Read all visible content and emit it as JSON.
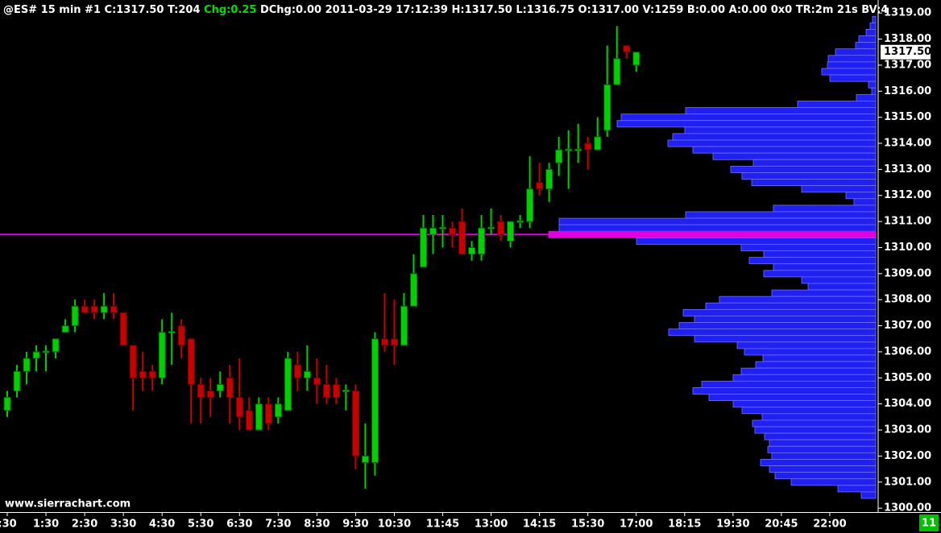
{
  "chart_data": {
    "type": "candlestick",
    "header": "@ES#  15 min  #1 C:1317.50 T:204",
    "change_text": "Chg:0.25",
    "header_rest": "DChg:0.00 2011-03-29 17:12:39 H:1317.50 L:1316.75 O:1317.00 V:1259 B:0.00 A:0.00 0x0 TR:2m 21s BV:4",
    "watermark": "www.sierrachart.com",
    "badge": "11",
    "last_price_label": "1317.50",
    "up_color": "#00d000",
    "down_color": "#c80000",
    "open": [
      1303.75,
      1304.5,
      1305.25,
      1305.75,
      1306,
      1306,
      1306.75,
      1307,
      1307.75,
      1307.75,
      1307.5,
      1307.75,
      1307.5,
      1306.25,
      1305.25,
      1305.25,
      1305,
      1306.75,
      1307,
      1306.5,
      1304.75,
      1304.5,
      1304.5,
      1305,
      1304.25,
      1303.75,
      1303,
      1304,
      1303.5,
      1303.75,
      1305.5,
      1305,
      1305,
      1304.75,
      1304.75,
      1304.5,
      1304.5,
      1301.75,
      1301.75,
      1306.5,
      1306.5,
      1306.25,
      1307.75,
      1309.25,
      1310.5,
      1310.75,
      1310.75,
      1311,
      1309.75,
      1309.75,
      1310.75,
      1311,
      1310.25,
      1311,
      1311,
      1312.5,
      1312.25,
      1313.25,
      1313.75,
      1313.75,
      1314,
      1313.75,
      1314.5,
      1316.25,
      1317.75,
      1317
    ],
    "high": [
      1304.5,
      1305.5,
      1306,
      1306.25,
      1306.25,
      1306.5,
      1307.25,
      1308,
      1308,
      1308,
      1308.25,
      1308.25,
      1307.5,
      1306.25,
      1306,
      1305.5,
      1307.25,
      1307.5,
      1307.25,
      1306.5,
      1305,
      1305,
      1305.25,
      1305.5,
      1305.75,
      1304.25,
      1304.25,
      1304.25,
      1304.25,
      1306,
      1306,
      1306.25,
      1305.75,
      1305.5,
      1305,
      1304.75,
      1304.75,
      1303.25,
      1306.75,
      1308.25,
      1308,
      1308.25,
      1309.75,
      1311.25,
      1311.25,
      1311.25,
      1311,
      1311.5,
      1310.25,
      1311.25,
      1311.5,
      1311.25,
      1311,
      1311.25,
      1313.5,
      1313.25,
      1313.25,
      1314.25,
      1314.5,
      1314.75,
      1314.25,
      1315,
      1317.75,
      1318.5,
      1317.75,
      1317.5
    ],
    "low": [
      1303.5,
      1304.25,
      1304.75,
      1305.25,
      1305.25,
      1305.75,
      1306.75,
      1306.75,
      1307.5,
      1307.25,
      1307.25,
      1307.25,
      1306.25,
      1303.75,
      1304.5,
      1304.5,
      1304.75,
      1305.5,
      1305.75,
      1303.25,
      1303.25,
      1303.5,
      1304.25,
      1303.25,
      1303,
      1303,
      1303,
      1303,
      1303.25,
      1303.75,
      1304.5,
      1304.5,
      1304,
      1304,
      1304,
      1303.75,
      1301.5,
      1300.75,
      1301.25,
      1306,
      1305.5,
      1306.25,
      1307.75,
      1309.25,
      1309.75,
      1310,
      1310,
      1309.75,
      1309.5,
      1309.5,
      1310.5,
      1310.25,
      1310,
      1310.75,
      1310.75,
      1312,
      1311.75,
      1312.75,
      1312.25,
      1313.25,
      1313,
      1313.75,
      1314.25,
      1316.25,
      1317.25,
      1316.75
    ],
    "close": [
      1304.25,
      1305.25,
      1305.75,
      1306,
      1306,
      1306.5,
      1307,
      1307.75,
      1307.5,
      1307.5,
      1307.75,
      1307.5,
      1306.25,
      1305,
      1305,
      1305,
      1306.75,
      1306.75,
      1306.25,
      1304.75,
      1304.25,
      1304.25,
      1304.75,
      1304.25,
      1303.5,
      1303,
      1304,
      1303.25,
      1304,
      1305.75,
      1305,
      1305.25,
      1304.75,
      1304.25,
      1304.25,
      1304.5,
      1302,
      1302,
      1306.5,
      1306.25,
      1306.25,
      1307.75,
      1309,
      1310.75,
      1310.75,
      1310.75,
      1310.5,
      1309.75,
      1310,
      1310.75,
      1310.75,
      1310.5,
      1311,
      1311,
      1312.25,
      1312.25,
      1313,
      1313.75,
      1313.75,
      1313.75,
      1313.75,
      1314.25,
      1316.25,
      1317.25,
      1317.5,
      1317.5
    ],
    "xlim": [
      -0.75,
      90
    ],
    "xticks": [
      {
        "value": 0,
        "label": ":30"
      },
      {
        "value": 4,
        "label": "1:30"
      },
      {
        "value": 8,
        "label": "2:30"
      },
      {
        "value": 12,
        "label": "3:30"
      },
      {
        "value": 16,
        "label": "4:30"
      },
      {
        "value": 20,
        "label": "5:30"
      },
      {
        "value": 24,
        "label": "6:30"
      },
      {
        "value": 28,
        "label": "7:30"
      },
      {
        "value": 32,
        "label": "8:30"
      },
      {
        "value": 36,
        "label": "9:30"
      },
      {
        "value": 40,
        "label": "10:30"
      },
      {
        "value": 45,
        "label": "11:45"
      },
      {
        "value": 50,
        "label": "13:00"
      },
      {
        "value": 55,
        "label": "14:15"
      },
      {
        "value": 60,
        "label": "15:30"
      },
      {
        "value": 65,
        "label": "17:00"
      },
      {
        "value": 70,
        "label": "18:15"
      },
      {
        "value": 75,
        "label": "19:30"
      },
      {
        "value": 80,
        "label": "20:45"
      },
      {
        "value": 85,
        "label": "22:00"
      }
    ],
    "ylim": [
      1299.85,
      1319.5
    ],
    "yticks": [
      {
        "value": 1300,
        "label": "1300.00"
      },
      {
        "value": 1301,
        "label": "1301.00"
      },
      {
        "value": 1302,
        "label": "1302.00"
      },
      {
        "value": 1303,
        "label": "1303.00"
      },
      {
        "value": 1304,
        "label": "1304.00"
      },
      {
        "value": 1305,
        "label": "1305.00"
      },
      {
        "value": 1306,
        "label": "1306.00"
      },
      {
        "value": 1307,
        "label": "1307.00"
      },
      {
        "value": 1308,
        "label": "1308.00"
      },
      {
        "value": 1309,
        "label": "1309.00"
      },
      {
        "value": 1310,
        "label": "1310.00"
      },
      {
        "value": 1311,
        "label": "1311.00"
      },
      {
        "value": 1312,
        "label": "1312.00"
      },
      {
        "value": 1313,
        "label": "1313.00"
      },
      {
        "value": 1314,
        "label": "1314.00"
      },
      {
        "value": 1315,
        "label": "1315.00"
      },
      {
        "value": 1316,
        "label": "1316.00"
      },
      {
        "value": 1317,
        "label": "1317.00"
      },
      {
        "value": 1318,
        "label": "1318.00"
      },
      {
        "value": 1319,
        "label": "1319.00"
      }
    ],
    "volume_profile": {
      "color": "#2020f0",
      "poc_color": "#e000e0",
      "poc": 1310.5,
      "prices": [
        1318.75,
        1318.5,
        1318.25,
        1318,
        1317.75,
        1317.5,
        1317.25,
        1317,
        1316.75,
        1316.5,
        1316.25,
        1316,
        1315.75,
        1315.5,
        1315.25,
        1315,
        1314.75,
        1314.5,
        1314.25,
        1314,
        1313.75,
        1313.5,
        1313.25,
        1313,
        1312.75,
        1312.5,
        1312.25,
        1312,
        1311.75,
        1311.5,
        1311.25,
        1311,
        1310.75,
        1310.5,
        1310.25,
        1310,
        1309.75,
        1309.5,
        1309.25,
        1309,
        1308.75,
        1308.5,
        1308.25,
        1308,
        1307.75,
        1307.5,
        1307.25,
        1307,
        1306.75,
        1306.5,
        1306.25,
        1306,
        1305.75,
        1305.5,
        1305.25,
        1305,
        1304.75,
        1304.5,
        1304.25,
        1304,
        1303.75,
        1303.5,
        1303.25,
        1303,
        1302.75,
        1302.5,
        1302.25,
        1302,
        1301.75,
        1301.5,
        1301.25,
        1301,
        1300.75,
        1300.5
      ],
      "volumes": [
        4,
        7,
        12,
        21,
        25,
        50,
        59,
        60,
        67,
        57,
        9,
        5,
        24,
        97,
        236,
        316,
        321,
        237,
        252,
        258,
        227,
        202,
        152,
        180,
        166,
        154,
        92,
        37,
        27,
        127,
        236,
        393,
        393,
        406,
        297,
        167,
        139,
        157,
        127,
        139,
        92,
        84,
        129,
        194,
        211,
        239,
        225,
        244,
        257,
        225,
        172,
        163,
        140,
        149,
        167,
        177,
        216,
        227,
        207,
        177,
        166,
        141,
        153,
        150,
        138,
        132,
        134,
        129,
        143,
        132,
        125,
        105,
        47,
        18
      ]
    }
  }
}
